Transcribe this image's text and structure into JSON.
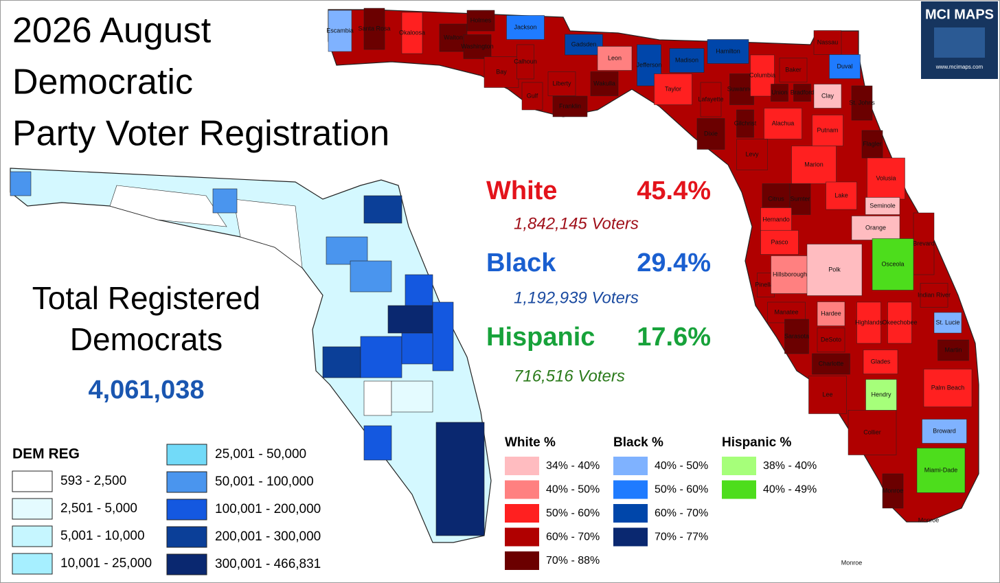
{
  "title": [
    "2026 August",
    "Democratic",
    "Party Voter Registration"
  ],
  "summary": {
    "label": [
      "Total Registered",
      "Democrats"
    ],
    "total": "4,061,038"
  },
  "groups": [
    {
      "name": "White",
      "share": "45.4%",
      "voters": "1,842,145  Voters",
      "color": "#e3131b",
      "sub_color": "#a0101a"
    },
    {
      "name": "Black",
      "share": "29.4%",
      "voters": "1,192,939  Voters",
      "color": "#1a5fd0",
      "sub_color": "#1a4aa0"
    },
    {
      "name": "Hispanic",
      "share": "17.6%",
      "voters": "716,516  Voters",
      "color": "#17a23a",
      "sub_color": "#2a7a1a"
    }
  ],
  "dem_legend": {
    "title": "DEM REG",
    "items": [
      {
        "label": "593 - 2,500",
        "color": "#ffffff"
      },
      {
        "label": "2,501 - 5,000",
        "color": "#e4fbff"
      },
      {
        "label": "5,001 - 10,000",
        "color": "#c6f6ff"
      },
      {
        "label": "10,001 - 25,000",
        "color": "#a6efff"
      },
      {
        "label": "25,001 - 50,000",
        "color": "#72daf8"
      },
      {
        "label": "50,001 - 100,000",
        "color": "#4a95ee"
      },
      {
        "label": "100,001 - 200,000",
        "color": "#1458e0"
      },
      {
        "label": "200,001 - 300,000",
        "color": "#0b3f98"
      },
      {
        "label": "300,001 - 466,831",
        "color": "#0a2870"
      }
    ]
  },
  "share_legends": [
    {
      "title": "White  %",
      "items": [
        {
          "label": "34% - 40%",
          "color": "#ffbcc0"
        },
        {
          "label": "40% - 50%",
          "color": "#ff8080"
        },
        {
          "label": "50% - 60%",
          "color": "#ff2020"
        },
        {
          "label": "60% - 70%",
          "color": "#b00000"
        },
        {
          "label": "70% - 88%",
          "color": "#6b0000"
        }
      ]
    },
    {
      "title": "Black  %",
      "items": [
        {
          "label": "40% - 50%",
          "color": "#7fb2ff"
        },
        {
          "label": "50% - 60%",
          "color": "#1f7bff"
        },
        {
          "label": "60% - 70%",
          "color": "#0046aa"
        },
        {
          "label": "70% - 77%",
          "color": "#0a2870"
        }
      ]
    },
    {
      "title": "Hispanic  %",
      "items": [
        {
          "label": "38% - 40%",
          "color": "#a6ff7a"
        },
        {
          "label": "40% - 49%",
          "color": "#4ddd1c"
        }
      ]
    }
  ],
  "counties": [
    {
      "name": "Escambia",
      "color": "#7fb2ff"
    },
    {
      "name": "Santa Rosa",
      "color": "#6b0000"
    },
    {
      "name": "Okaloosa",
      "color": "#ff2020"
    },
    {
      "name": "Walton",
      "color": "#6b0000"
    },
    {
      "name": "Holmes",
      "color": "#6b0000"
    },
    {
      "name": "Washington",
      "color": "#6b0000"
    },
    {
      "name": "Jackson",
      "color": "#1f7bff"
    },
    {
      "name": "Bay",
      "color": "#b00000"
    },
    {
      "name": "Calhoun",
      "color": "#b00000"
    },
    {
      "name": "Gulf",
      "color": "#b00000"
    },
    {
      "name": "Liberty",
      "color": "#b00000"
    },
    {
      "name": "Franklin",
      "color": "#6b0000"
    },
    {
      "name": "Gadsden",
      "color": "#0046aa"
    },
    {
      "name": "Leon",
      "color": "#ff8080"
    },
    {
      "name": "Wakulla",
      "color": "#6b0000"
    },
    {
      "name": "Jefferson",
      "color": "#0046aa"
    },
    {
      "name": "Madison",
      "color": "#0046aa"
    },
    {
      "name": "Hamilton",
      "color": "#0046aa"
    },
    {
      "name": "Taylor",
      "color": "#ff2020"
    },
    {
      "name": "Lafayette",
      "color": "#b00000"
    },
    {
      "name": "Suwannee",
      "color": "#6b0000"
    },
    {
      "name": "Columbia",
      "color": "#ff2020"
    },
    {
      "name": "Baker",
      "color": "#b00000"
    },
    {
      "name": "Nassau",
      "color": "#b00000"
    },
    {
      "name": "Duval",
      "color": "#1f7bff"
    },
    {
      "name": "Union",
      "color": "#6b0000"
    },
    {
      "name": "Bradford",
      "color": "#6b0000"
    },
    {
      "name": "Clay",
      "color": "#ffbcc0"
    },
    {
      "name": "St. Johns",
      "color": "#6b0000"
    },
    {
      "name": "Dixie",
      "color": "#6b0000"
    },
    {
      "name": "Gilchrist",
      "color": "#6b0000"
    },
    {
      "name": "Alachua",
      "color": "#ff2020"
    },
    {
      "name": "Putnam",
      "color": "#ff2020"
    },
    {
      "name": "Flagler",
      "color": "#6b0000"
    },
    {
      "name": "Levy",
      "color": "#b00000"
    },
    {
      "name": "Marion",
      "color": "#ff2020"
    },
    {
      "name": "Volusia",
      "color": "#ff2020"
    },
    {
      "name": "Citrus",
      "color": "#6b0000"
    },
    {
      "name": "Sumter",
      "color": "#6b0000"
    },
    {
      "name": "Lake",
      "color": "#ff2020"
    },
    {
      "name": "Seminole",
      "color": "#ffbcc0"
    },
    {
      "name": "Hernando",
      "color": "#ff2020"
    },
    {
      "name": "Orange",
      "color": "#ffbcc0"
    },
    {
      "name": "Pasco",
      "color": "#ff2020"
    },
    {
      "name": "Brevard",
      "color": "#b00000"
    },
    {
      "name": "Pinellas",
      "color": "#b00000"
    },
    {
      "name": "Hillsborough",
      "color": "#ff8080"
    },
    {
      "name": "Polk",
      "color": "#ffbcc0"
    },
    {
      "name": "Osceola",
      "color": "#4ddd1c"
    },
    {
      "name": "Indian River",
      "color": "#b00000"
    },
    {
      "name": "Manatee",
      "color": "#b00000"
    },
    {
      "name": "Hardee",
      "color": "#ff8080"
    },
    {
      "name": "Highlands",
      "color": "#ff2020"
    },
    {
      "name": "Okeechobee",
      "color": "#ff2020"
    },
    {
      "name": "St. Lucie",
      "color": "#7fb2ff"
    },
    {
      "name": "Sarasota",
      "color": "#6b0000"
    },
    {
      "name": "DeSoto",
      "color": "#b00000"
    },
    {
      "name": "Martin",
      "color": "#6b0000"
    },
    {
      "name": "Charlotte",
      "color": "#6b0000"
    },
    {
      "name": "Glades",
      "color": "#ff2020"
    },
    {
      "name": "Lee",
      "color": "#b00000"
    },
    {
      "name": "Hendry",
      "color": "#a6ff7a"
    },
    {
      "name": "Palm Beach",
      "color": "#ff2020"
    },
    {
      "name": "Collier",
      "color": "#b00000"
    },
    {
      "name": "Broward",
      "color": "#7fb2ff"
    },
    {
      "name": "Monroe",
      "color": "#6b0000"
    },
    {
      "name": "Miami-Dade",
      "color": "#4ddd1c"
    },
    {
      "name": "Monroe",
      "color": "#6b0000"
    },
    {
      "name": "Monroe",
      "color": "#6b0000"
    }
  ],
  "logo": {
    "name": "MCI MAPS",
    "url": "www.mcimaps.com"
  }
}
